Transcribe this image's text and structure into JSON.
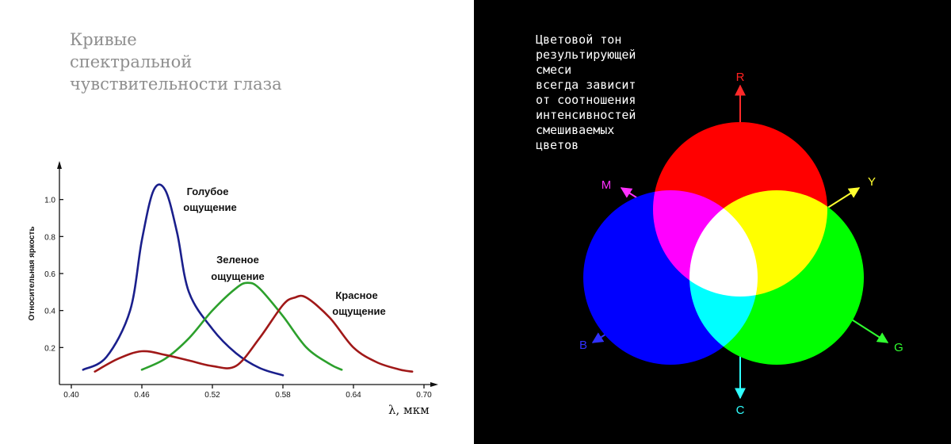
{
  "left": {
    "title_lines": [
      "Кривые",
      "спектральной",
      "чувствительности глаза"
    ]
  },
  "chart_data": {
    "type": "line",
    "ylabel": "Относительная яркость",
    "xlabel": "λ, мкм",
    "x_ticks": [
      "0.40",
      "0.46",
      "0.52",
      "0.58",
      "0.64",
      "0.70"
    ],
    "y_ticks": [
      "0.2",
      "0.4",
      "0.6",
      "0.8",
      "1.0"
    ],
    "xlim": [
      0.4,
      0.7
    ],
    "ylim": [
      0.0,
      1.2
    ],
    "series": [
      {
        "name": "Голубое ощущение",
        "label_lines": [
          "Голубое",
          "ощущение"
        ],
        "color": "#1a1f8c",
        "points": [
          [
            0.41,
            0.08
          ],
          [
            0.43,
            0.15
          ],
          [
            0.45,
            0.4
          ],
          [
            0.46,
            0.78
          ],
          [
            0.47,
            1.05
          ],
          [
            0.48,
            1.05
          ],
          [
            0.49,
            0.82
          ],
          [
            0.5,
            0.5
          ],
          [
            0.52,
            0.3
          ],
          [
            0.54,
            0.17
          ],
          [
            0.56,
            0.09
          ],
          [
            0.58,
            0.05
          ]
        ]
      },
      {
        "name": "Зеленое ощущение",
        "label_lines": [
          "Зеленое",
          "ощущение"
        ],
        "color": "#2ca02c",
        "points": [
          [
            0.46,
            0.08
          ],
          [
            0.48,
            0.14
          ],
          [
            0.5,
            0.25
          ],
          [
            0.52,
            0.4
          ],
          [
            0.54,
            0.52
          ],
          [
            0.55,
            0.55
          ],
          [
            0.56,
            0.52
          ],
          [
            0.58,
            0.37
          ],
          [
            0.6,
            0.2
          ],
          [
            0.62,
            0.11
          ],
          [
            0.63,
            0.08
          ]
        ]
      },
      {
        "name": "Красное ощущение",
        "label_lines": [
          "Красное",
          "ощущение"
        ],
        "color": "#a01818",
        "points": [
          [
            0.42,
            0.07
          ],
          [
            0.44,
            0.14
          ],
          [
            0.46,
            0.18
          ],
          [
            0.48,
            0.16
          ],
          [
            0.5,
            0.13
          ],
          [
            0.52,
            0.1
          ],
          [
            0.54,
            0.1
          ],
          [
            0.56,
            0.25
          ],
          [
            0.58,
            0.43
          ],
          [
            0.59,
            0.47
          ],
          [
            0.6,
            0.47
          ],
          [
            0.62,
            0.36
          ],
          [
            0.64,
            0.2
          ],
          [
            0.66,
            0.12
          ],
          [
            0.68,
            0.08
          ],
          [
            0.69,
            0.07
          ]
        ]
      }
    ]
  },
  "right": {
    "text_lines": [
      "Цветовой тон",
      "результирующей",
      "смеси",
      "всегда зависит",
      "от соотношения",
      "интенсивностей",
      "смешиваемых",
      "цветов"
    ],
    "labels": {
      "R": "R",
      "G": "G",
      "B": "B",
      "C": "C",
      "M": "M",
      "Y": "Y"
    },
    "colors": {
      "red": "#ff0000",
      "green": "#00ff00",
      "blue": "#0000ff",
      "cyan": "#00ffff",
      "magenta": "#ff00ff",
      "yellow": "#ffff00",
      "white": "#ffffff"
    }
  }
}
